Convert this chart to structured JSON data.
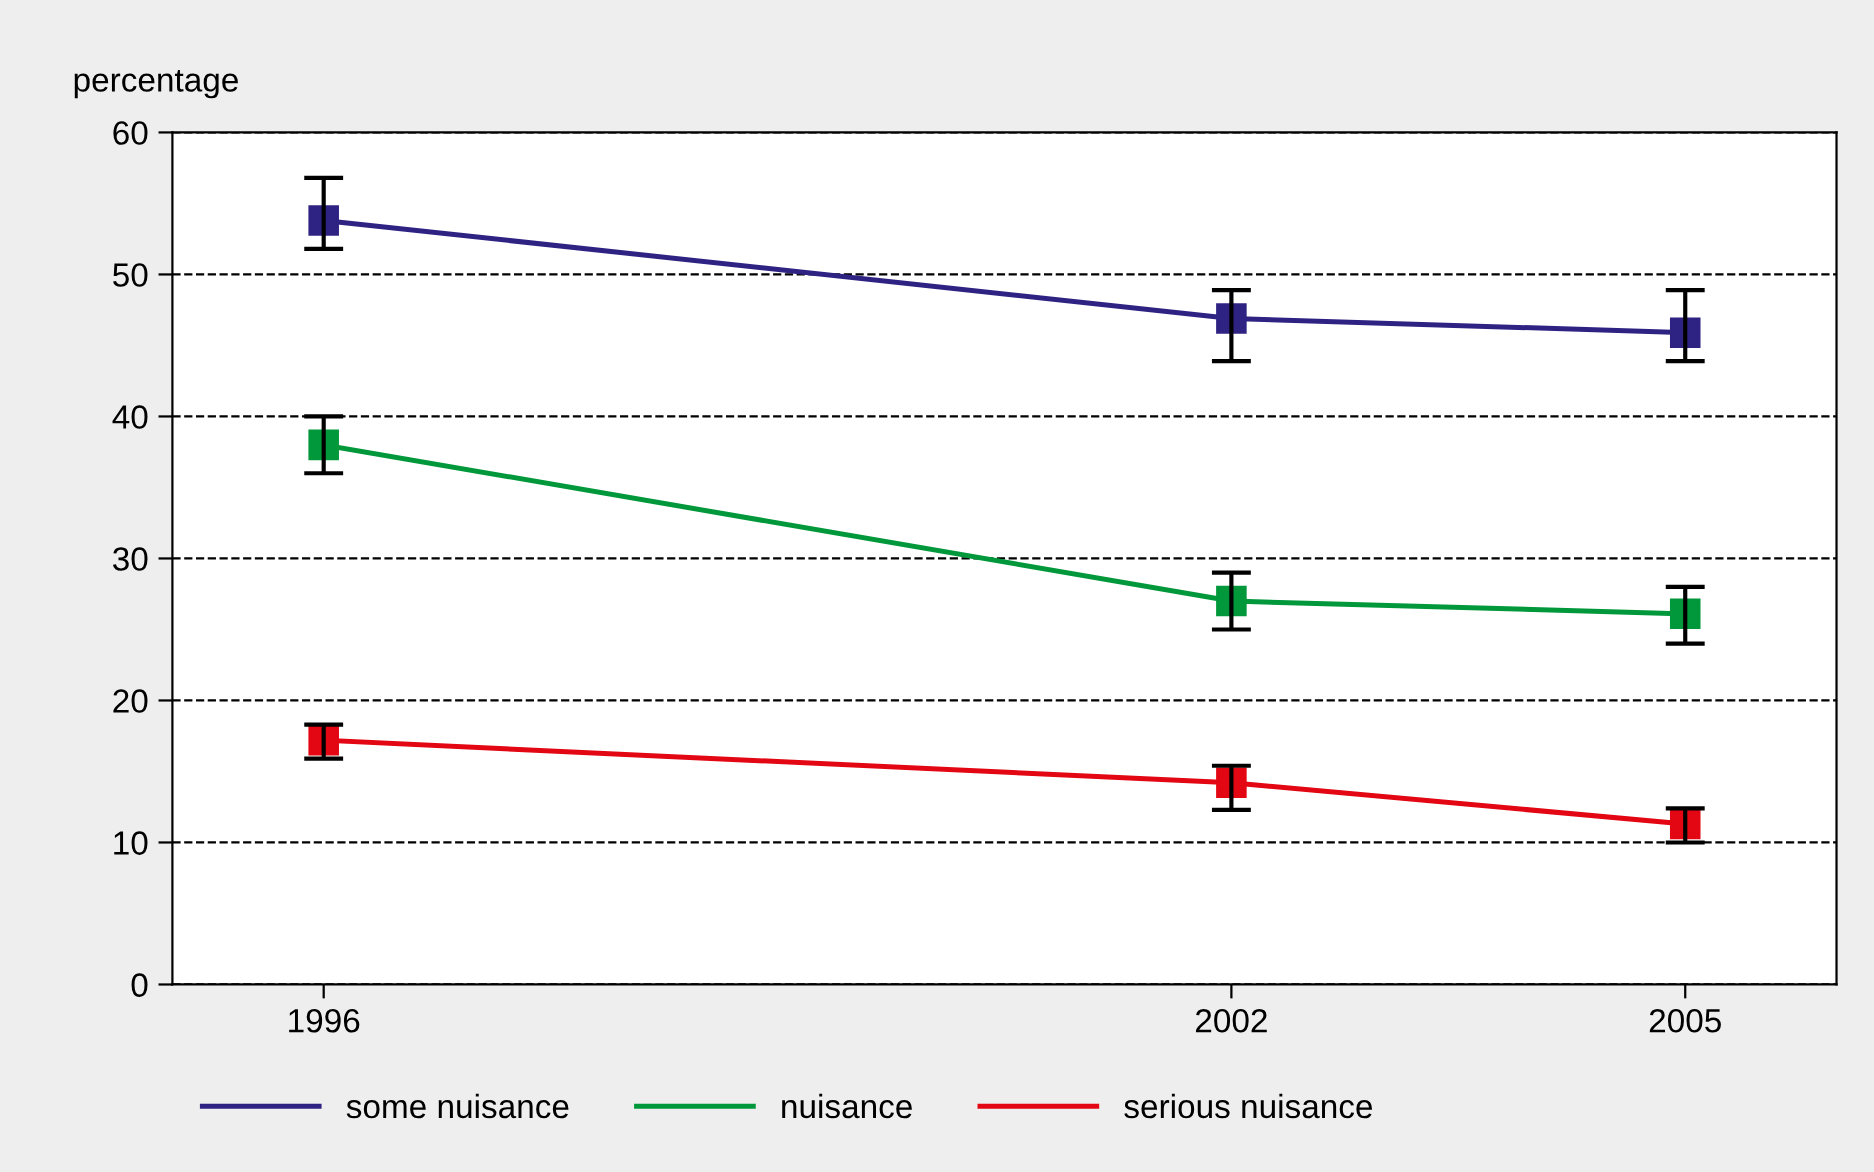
{
  "chart_data": {
    "type": "line",
    "ylabel": "percentage",
    "x": [
      1996,
      2002,
      2005
    ],
    "xlim": [
      1995,
      2006
    ],
    "xticks": [
      1996,
      2002,
      2005
    ],
    "ylim": [
      0,
      60
    ],
    "yticks": [
      0,
      10,
      20,
      30,
      40,
      50,
      60
    ],
    "grid": "y",
    "legend": "bottom",
    "marker": "square",
    "line_style": "solid",
    "series": [
      {
        "name": "some nuisance",
        "color": "#2e2383",
        "values": [
          53.8,
          46.9,
          45.9
        ],
        "errors": [
          [
            51.8,
            56.8
          ],
          [
            43.9,
            48.9
          ],
          [
            43.9,
            48.9
          ]
        ]
      },
      {
        "name": "nuisance",
        "color": "#00983a",
        "values": [
          38.0,
          27.0,
          26.1
        ],
        "errors": [
          [
            36,
            40
          ],
          [
            25,
            29
          ],
          [
            24,
            28
          ]
        ]
      },
      {
        "name": "serious nuisance",
        "color": "#e30613",
        "values": [
          17.2,
          14.2,
          11.3
        ],
        "errors": [
          [
            15.9,
            18.3
          ],
          [
            12.3,
            15.4
          ],
          [
            10,
            12.4
          ]
        ]
      }
    ]
  }
}
